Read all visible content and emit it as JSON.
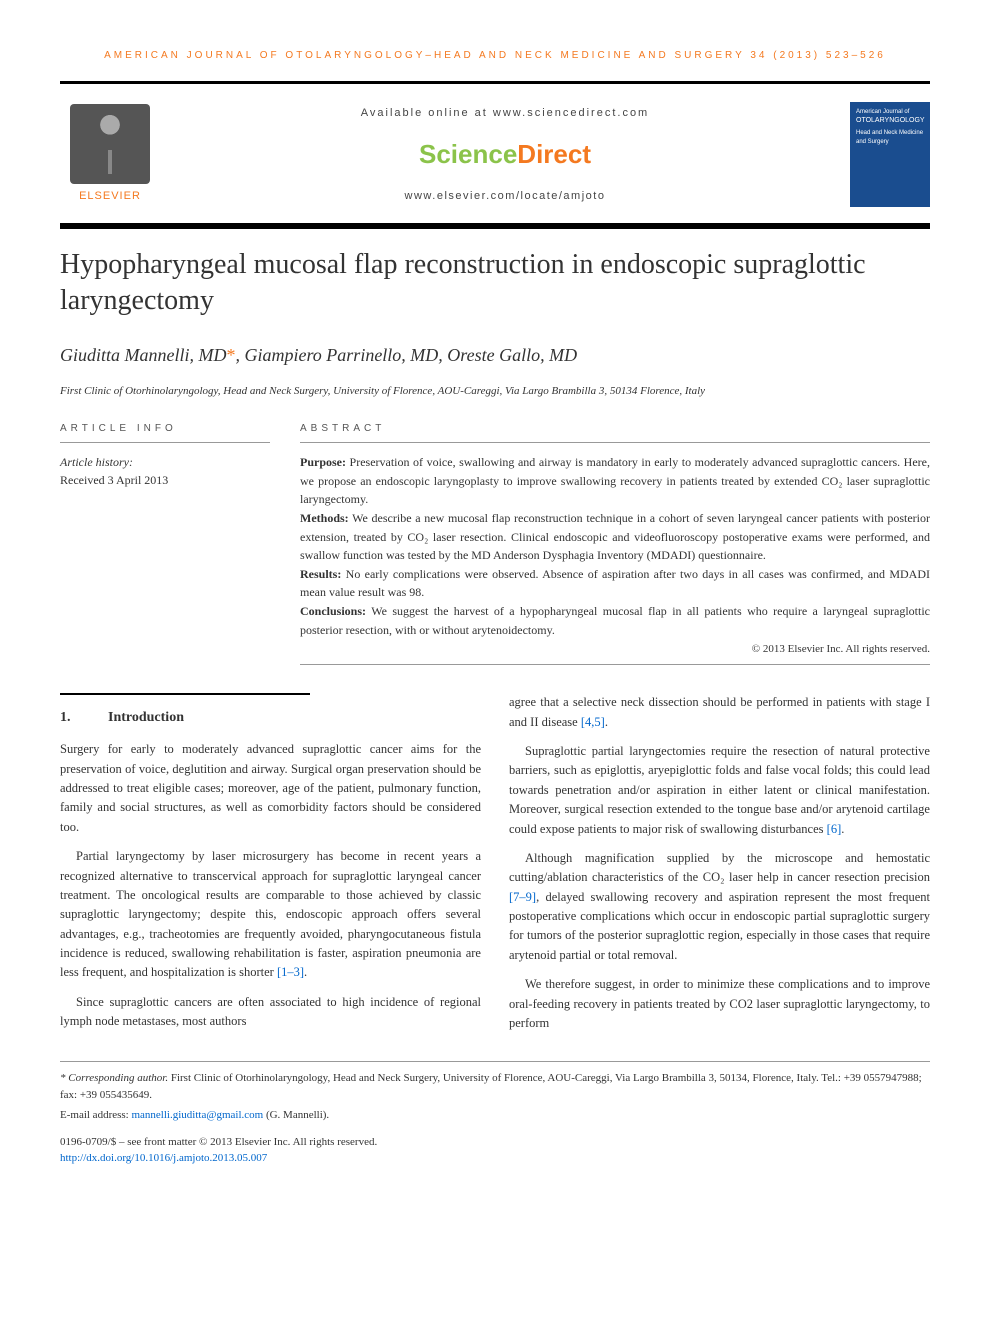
{
  "running_header": "AMERICAN JOURNAL OF OTOLARYNGOLOGY–HEAD AND NECK MEDICINE AND SURGERY 34 (2013) 523–526",
  "masthead": {
    "publisher": "ELSEVIER",
    "available_online": "Available online at www.sciencedirect.com",
    "brand_a": "Science",
    "brand_b": "Direct",
    "journal_url": "www.elsevier.com/locate/amjoto",
    "cover_top": "American Journal of",
    "cover_title": "OTOLARYNGOLOGY",
    "cover_sub": "Head and Neck Medicine and Surgery"
  },
  "title": "Hypopharyngeal mucosal flap reconstruction in endoscopic supraglottic laryngectomy",
  "authors": "Giuditta Mannelli, MD",
  "author_star": "*",
  "authors_rest": ", Giampiero Parrinello, MD, Oreste Gallo, MD",
  "affiliation": "First Clinic of Otorhinolaryngology, Head and Neck Surgery, University of Florence, AOU-Careggi, Via Largo Brambilla 3, 50134 Florence, Italy",
  "info_label": "ARTICLE INFO",
  "abstract_label": "ABSTRACT",
  "history_label": "Article history:",
  "history_date": "Received 3 April 2013",
  "abstract": {
    "purpose_label": "Purpose:",
    "purpose": " Preservation of voice, swallowing and airway is mandatory in early to moderately advanced supraglottic cancers. Here, we propose an endoscopic laryngoplasty to improve swallowing recovery in patients treated by extended CO₂ laser supraglottic laryngectomy.",
    "methods_label": "Methods:",
    "methods": " We describe a new mucosal flap reconstruction technique in a cohort of seven laryngeal cancer patients with posterior extension, treated by CO₂ laser resection. Clinical endoscopic and videofluoroscopy postoperative exams were performed, and swallow function was tested by the MD Anderson Dysphagia Inventory (MDADI) questionnaire.",
    "results_label": "Results:",
    "results": " No early complications were observed. Absence of aspiration after two days in all cases was confirmed, and MDADI mean value result was 98.",
    "conclusions_label": "Conclusions:",
    "conclusions": " We suggest the harvest of a hypopharyngeal mucosal flap in all patients who require a laryngeal supraglottic posterior resection, with or without arytenoidectomy.",
    "copyright": "© 2013 Elsevier Inc. All rights reserved."
  },
  "section1": {
    "num": "1.",
    "title": "Introduction"
  },
  "body": {
    "p1": "Surgery for early to moderately advanced supraglottic cancer aims for the preservation of voice, deglutition and airway. Surgical organ preservation should be addressed to treat eligible cases; moreover, age of the patient, pulmonary function, family and social structures, as well as comorbidity factors should be considered too.",
    "p2a": "Partial laryngectomy by laser microsurgery has become in recent years a recognized alternative to transcervical approach for supraglottic laryngeal cancer treatment. The oncological results are comparable to those achieved by classic supraglottic laryngectomy; despite this, endoscopic approach offers several advantages, e.g., tracheotomies are frequently avoided, pharyngocutaneous fistula incidence is reduced, swallowing rehabilitation is faster, aspiration pneumonia are less frequent, and hospitalization is shorter ",
    "p2cite": "[1–3]",
    "p2b": ".",
    "p3": "Since supraglottic cancers are often associated to high incidence of regional lymph node metastases, most authors",
    "p4a": "agree that a selective neck dissection should be performed in patients with stage I and II disease ",
    "p4cite": "[4,5]",
    "p4b": ".",
    "p5a": "Supraglottic partial laryngectomies require the resection of natural protective barriers, such as epiglottis, aryepiglottic folds and false vocal folds; this could lead towards penetration and/or aspiration in either latent or clinical manifestation. Moreover, surgical resection extended to the tongue base and/or arytenoid cartilage could expose patients to major risk of swallowing disturbances ",
    "p5cite": "[6]",
    "p5b": ".",
    "p6a": "Although magnification supplied by the microscope and hemostatic cutting/ablation characteristics of the CO₂ laser help in cancer resection precision ",
    "p6cite": "[7–9]",
    "p6b": ", delayed swallowing recovery and aspiration represent the most frequent postoperative complications which occur in endoscopic partial supraglottic surgery for tumors of the posterior supraglottic region, especially in those cases that require arytenoid partial or total removal.",
    "p7": "We therefore suggest, in order to minimize these complications and to improve oral-feeding recovery in patients treated by CO2 laser supraglottic laryngectomy, to perform"
  },
  "footnote": {
    "corr_label": "* Corresponding author.",
    "corr": " First Clinic of Otorhinolaryngology, Head and Neck Surgery, University of Florence, AOU-Careggi, Via Largo Brambilla 3, 50134, Florence, Italy. Tel.: +39 0557947988; fax: +39 055435649.",
    "email_label": "E-mail address: ",
    "email": "mannelli.giuditta@gmail.com",
    "email_who": " (G. Mannelli)."
  },
  "front_matter": {
    "line1": "0196-0709/$ – see front matter © 2013 Elsevier Inc. All rights reserved.",
    "doi": "http://dx.doi.org/10.1016/j.amjoto.2013.05.007"
  }
}
